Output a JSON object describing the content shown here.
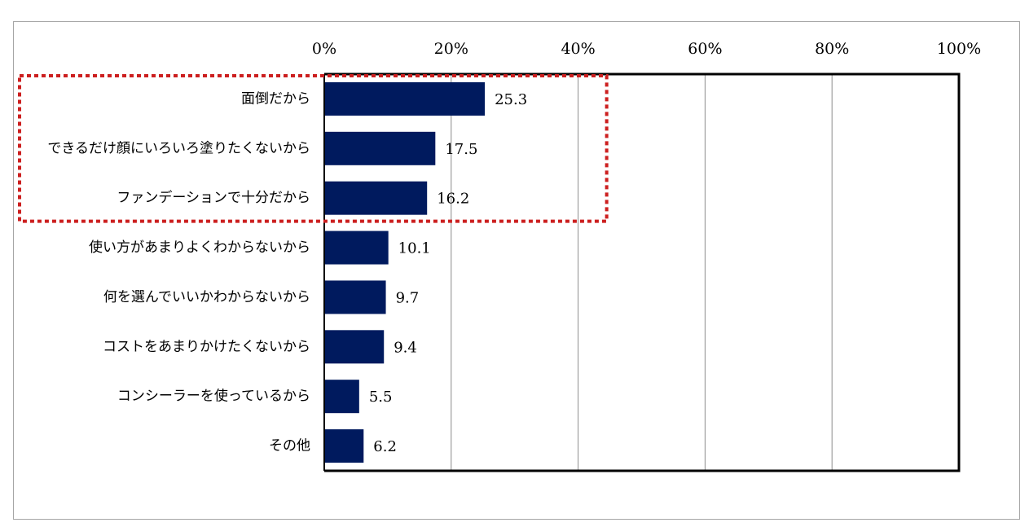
{
  "chart_data": {
    "type": "bar",
    "orientation": "horizontal",
    "categories": [
      "面倒だから",
      "できるだけ顔にいろいろ塗りたくないから",
      "ファンデーションで十分だから",
      "使い方があまりよくわからないから",
      "何を選んでいいかわからないから",
      "コストをあまりかけたくないから",
      "コンシーラーを使っているから",
      "その他"
    ],
    "values": [
      25.3,
      17.5,
      16.2,
      10.1,
      9.7,
      9.4,
      5.5,
      6.2
    ],
    "value_labels": [
      "25.3",
      "17.5",
      "16.2",
      "10.1",
      "9.7",
      "9.4",
      "5.5",
      "6.2"
    ],
    "xlim": [
      0,
      100
    ],
    "xticks": [
      0,
      20,
      40,
      60,
      80,
      100
    ],
    "xtick_labels": [
      "0%",
      "20%",
      "40%",
      "60%",
      "80%",
      "100%"
    ],
    "xaxis_position": "top",
    "grid": true,
    "legend": false,
    "title": "",
    "xlabel": "",
    "ylabel": "",
    "highlight": {
      "first_n_categories": 3,
      "style": "dotted-box",
      "xmax": 44.5
    }
  },
  "colors": {
    "bar": "#001a5e",
    "highlight": "#cc1f1f",
    "gridline": "#8c8c8c",
    "frame": "#a6a6a6"
  }
}
